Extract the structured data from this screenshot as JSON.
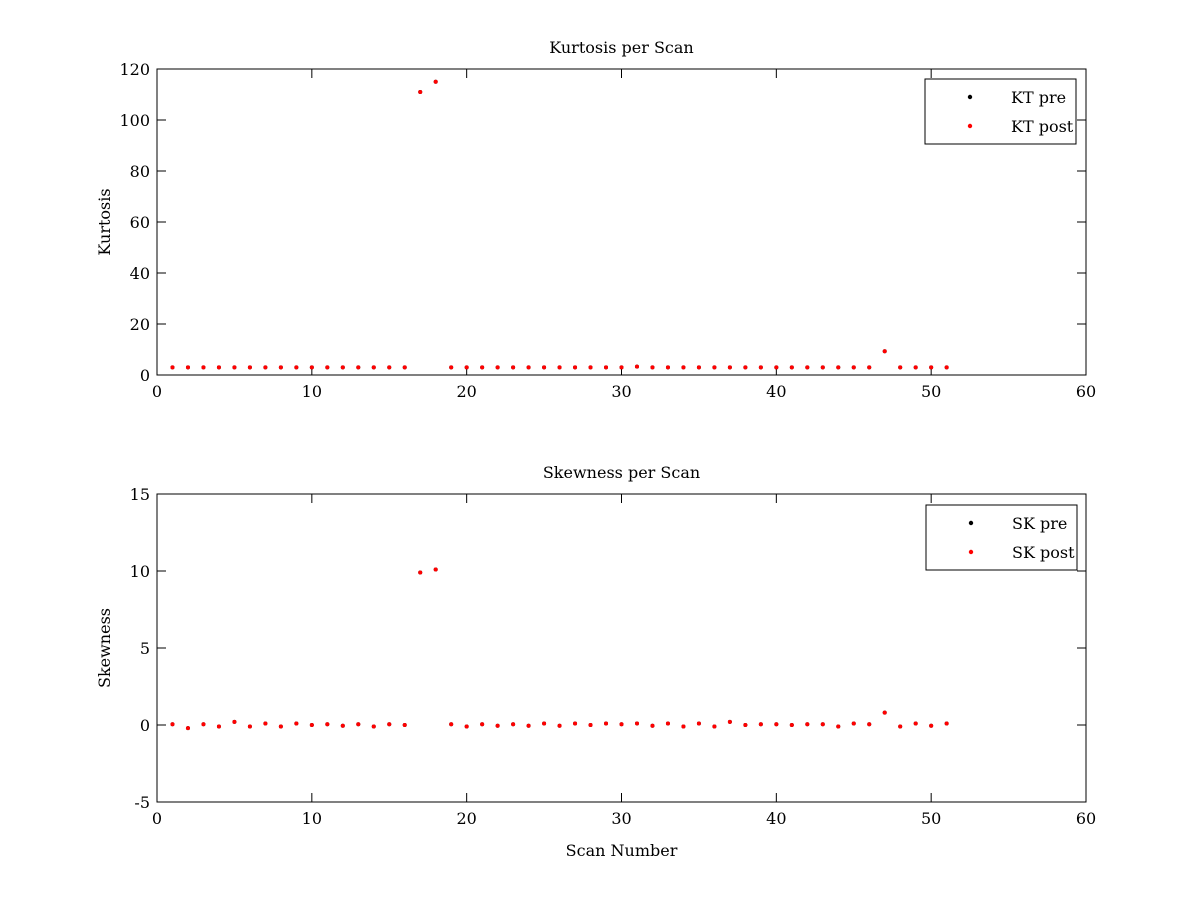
{
  "chart_data": [
    {
      "type": "scatter",
      "title": "Kurtosis per Scan",
      "xlabel": "",
      "ylabel": "Kurtosis",
      "xlim": [
        0,
        60
      ],
      "ylim": [
        0,
        120
      ],
      "xticks": [
        0,
        10,
        20,
        30,
        40,
        50,
        60
      ],
      "yticks": [
        0,
        20,
        40,
        60,
        80,
        100,
        120
      ],
      "legend_position": "top-right",
      "grid": false,
      "series": [
        {
          "name": "KT pre",
          "color": "#000000",
          "x": [
            1,
            2,
            3,
            4,
            5,
            6,
            7,
            8,
            9,
            10,
            11,
            12,
            13,
            14,
            15,
            16,
            17,
            18,
            19,
            20,
            21,
            22,
            23,
            24,
            25,
            26,
            27,
            28,
            29,
            30,
            31,
            32,
            33,
            34,
            35,
            36,
            37,
            38,
            39,
            40,
            41,
            42,
            43,
            44,
            45,
            46,
            47,
            48,
            49,
            50,
            51
          ],
          "y": [
            3,
            3,
            3,
            3,
            3,
            3,
            3,
            3,
            3,
            3,
            3,
            3,
            3,
            3,
            3,
            3,
            111,
            115,
            3,
            3,
            3,
            3,
            3,
            3,
            3,
            3,
            3,
            3,
            3,
            3,
            3.3,
            3,
            3,
            3,
            3,
            3,
            3,
            3,
            3,
            3,
            3,
            3,
            3,
            3,
            3,
            3,
            9.3,
            3,
            3,
            3,
            3
          ]
        },
        {
          "name": "KT post",
          "color": "#ff0000",
          "x": [
            1,
            2,
            3,
            4,
            5,
            6,
            7,
            8,
            9,
            10,
            11,
            12,
            13,
            14,
            15,
            16,
            17,
            18,
            19,
            20,
            21,
            22,
            23,
            24,
            25,
            26,
            27,
            28,
            29,
            30,
            31,
            32,
            33,
            34,
            35,
            36,
            37,
            38,
            39,
            40,
            41,
            42,
            43,
            44,
            45,
            46,
            47,
            48,
            49,
            50,
            51
          ],
          "y": [
            3,
            3,
            3,
            3,
            3,
            3,
            3,
            3,
            3,
            3,
            3,
            3,
            3,
            3,
            3,
            3,
            111,
            115,
            3,
            3,
            3,
            3,
            3,
            3,
            3,
            3,
            3,
            3,
            3,
            3,
            3.3,
            3,
            3,
            3,
            3,
            3,
            3,
            3,
            3,
            3,
            3,
            3,
            3,
            3,
            3,
            3,
            9.3,
            3,
            3,
            3,
            3
          ]
        }
      ]
    },
    {
      "type": "scatter",
      "title": "Skewness per Scan",
      "xlabel": "Scan Number",
      "ylabel": "Skewness",
      "xlim": [
        0,
        60
      ],
      "ylim": [
        -5,
        15
      ],
      "xticks": [
        0,
        10,
        20,
        30,
        40,
        50,
        60
      ],
      "yticks": [
        -5,
        0,
        5,
        10,
        15
      ],
      "legend_position": "top-right",
      "grid": false,
      "series": [
        {
          "name": "SK pre",
          "color": "#000000",
          "x": [
            1,
            2,
            3,
            4,
            5,
            6,
            7,
            8,
            9,
            10,
            11,
            12,
            13,
            14,
            15,
            16,
            17,
            18,
            19,
            20,
            21,
            22,
            23,
            24,
            25,
            26,
            27,
            28,
            29,
            30,
            31,
            32,
            33,
            34,
            35,
            36,
            37,
            38,
            39,
            40,
            41,
            42,
            43,
            44,
            45,
            46,
            47,
            48,
            49,
            50,
            51
          ],
          "y": [
            0.05,
            -0.2,
            0.05,
            -0.1,
            0.2,
            -0.1,
            0.1,
            -0.1,
            0.1,
            0,
            0.05,
            -0.05,
            0.05,
            -0.1,
            0.05,
            0,
            9.9,
            10.1,
            0.05,
            -0.1,
            0.05,
            -0.05,
            0.05,
            -0.05,
            0.1,
            -0.05,
            0.1,
            0,
            0.1,
            0.05,
            0.1,
            -0.05,
            0.1,
            -0.1,
            0.1,
            -0.1,
            0.2,
            0,
            0.05,
            0.05,
            0,
            0.05,
            0.05,
            -0.1,
            0.1,
            0.05,
            0.8,
            -0.1,
            0.1,
            -0.05,
            0.1
          ]
        },
        {
          "name": "SK post",
          "color": "#ff0000",
          "x": [
            1,
            2,
            3,
            4,
            5,
            6,
            7,
            8,
            9,
            10,
            11,
            12,
            13,
            14,
            15,
            16,
            17,
            18,
            19,
            20,
            21,
            22,
            23,
            24,
            25,
            26,
            27,
            28,
            29,
            30,
            31,
            32,
            33,
            34,
            35,
            36,
            37,
            38,
            39,
            40,
            41,
            42,
            43,
            44,
            45,
            46,
            47,
            48,
            49,
            50,
            51
          ],
          "y": [
            0.05,
            -0.2,
            0.05,
            -0.1,
            0.2,
            -0.1,
            0.1,
            -0.1,
            0.1,
            0,
            0.05,
            -0.05,
            0.05,
            -0.1,
            0.05,
            0,
            9.9,
            10.1,
            0.05,
            -0.1,
            0.05,
            -0.05,
            0.05,
            -0.05,
            0.1,
            -0.05,
            0.1,
            0,
            0.1,
            0.05,
            0.1,
            -0.05,
            0.1,
            -0.1,
            0.1,
            -0.1,
            0.2,
            0,
            0.05,
            0.05,
            0,
            0.05,
            0.05,
            -0.1,
            0.1,
            0.05,
            0.8,
            -0.1,
            0.1,
            -0.05,
            0.1
          ]
        }
      ]
    }
  ]
}
